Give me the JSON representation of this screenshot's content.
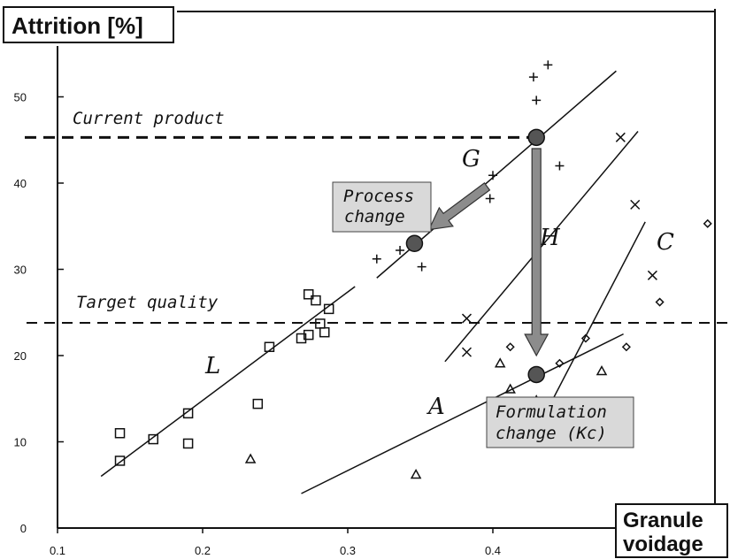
{
  "chart_data": {
    "type": "scatter",
    "title": "",
    "ylabel": "Attrition [%]",
    "xlabel_lines": [
      "Granule",
      "voidage"
    ],
    "xlim": [
      0.1,
      0.5
    ],
    "ylim": [
      0,
      55
    ],
    "x_ticks": [
      0.1,
      0.2,
      0.3,
      0.4
    ],
    "y_ticks": [
      0,
      10,
      20,
      30,
      40,
      50
    ],
    "grid": false,
    "reference_lines": [
      {
        "label": "Current product",
        "y": 45.3
      },
      {
        "label": "Target quality",
        "y": 23.8
      }
    ],
    "trend_lines": [
      {
        "label": "L",
        "from": [
          0.13,
          6.0
        ],
        "to": [
          0.305,
          28.0
        ]
      },
      {
        "label": "G",
        "from": [
          0.32,
          29.0
        ],
        "to": [
          0.485,
          53.0
        ]
      },
      {
        "label": "H",
        "from": [
          0.367,
          19.3
        ],
        "to": [
          0.5,
          46.0
        ]
      },
      {
        "label": "C",
        "from": [
          0.44,
          14.5
        ],
        "to": [
          0.505,
          35.5
        ]
      },
      {
        "label": "A",
        "from": [
          0.268,
          4.0
        ],
        "to": [
          0.49,
          22.5
        ]
      }
    ],
    "series": [
      {
        "marker": "square",
        "points": [
          [
            0.143,
            11.0
          ],
          [
            0.143,
            7.8
          ],
          [
            0.166,
            10.3
          ],
          [
            0.19,
            13.3
          ],
          [
            0.19,
            9.8
          ],
          [
            0.238,
            14.4
          ],
          [
            0.246,
            21.0
          ],
          [
            0.268,
            22.0
          ],
          [
            0.273,
            22.4
          ],
          [
            0.273,
            27.1
          ],
          [
            0.278,
            26.4
          ],
          [
            0.281,
            23.7
          ],
          [
            0.284,
            22.7
          ],
          [
            0.287,
            25.4
          ]
        ]
      },
      {
        "marker": "plus",
        "points": [
          [
            0.32,
            31.2
          ],
          [
            0.336,
            32.2
          ],
          [
            0.351,
            30.3
          ],
          [
            0.398,
            38.2
          ],
          [
            0.4,
            40.9
          ],
          [
            0.428,
            52.3
          ],
          [
            0.43,
            49.6
          ],
          [
            0.438,
            53.7
          ],
          [
            0.446,
            42.0
          ]
        ]
      },
      {
        "marker": "cross",
        "points": [
          [
            0.382,
            24.3
          ],
          [
            0.382,
            20.4
          ],
          [
            0.488,
            45.3
          ],
          [
            0.498,
            37.5
          ],
          [
            0.51,
            29.3
          ]
        ]
      },
      {
        "marker": "diamond",
        "points": [
          [
            0.412,
            21.0
          ],
          [
            0.446,
            19.1
          ],
          [
            0.464,
            22.0
          ],
          [
            0.492,
            21.0
          ],
          [
            0.515,
            26.2
          ],
          [
            0.548,
            35.3
          ]
        ]
      },
      {
        "marker": "triangle",
        "points": [
          [
            0.233,
            8.0
          ],
          [
            0.347,
            6.2
          ],
          [
            0.405,
            19.1
          ],
          [
            0.412,
            16.1
          ],
          [
            0.43,
            14.8
          ],
          [
            0.456,
            14.3
          ],
          [
            0.475,
            18.2
          ]
        ]
      }
    ],
    "highlight_points": [
      {
        "x": 0.43,
        "y": 45.3
      },
      {
        "x": 0.346,
        "y": 33.0
      },
      {
        "x": 0.43,
        "y": 17.8
      }
    ],
    "arrows": [
      {
        "label_lines": [
          "Process",
          "change"
        ],
        "from": [
          0.396,
          39.6
        ],
        "to": [
          0.356,
          34.6
        ]
      },
      {
        "label_lines": [
          "Formulation",
          "change (Kc)"
        ],
        "from": [
          0.43,
          44.0
        ],
        "to": [
          0.43,
          20.0
        ]
      }
    ]
  },
  "labels": {
    "y_title": "Attrition [%]",
    "x_title_line1": "Granule",
    "x_title_line2": "voidage",
    "current_product": "Current product",
    "target_quality": "Target quality",
    "line_L": "L",
    "line_G": "G",
    "line_H": "H",
    "line_C": "C",
    "line_A": "A",
    "process_line1": "Process",
    "process_line2": "change",
    "formulation_line1": "Formulation",
    "formulation_line2": "change (Kc)"
  }
}
